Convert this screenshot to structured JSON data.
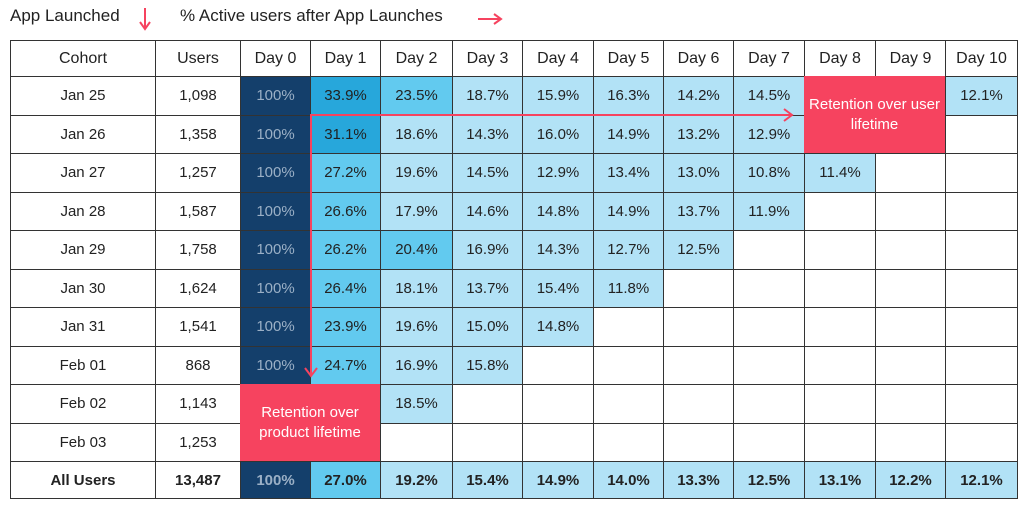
{
  "labels": {
    "app_launched": "App Launched",
    "active_users": "% Active users after App Launches",
    "user_lifetime": "Retention over user lifetime",
    "product_lifetime": "Retention over product lifetime"
  },
  "colors": {
    "day0": "#143f6b",
    "high": "#27a7db",
    "mid": "#62caef",
    "low": "#b2e2f6",
    "accent": "#f6435f"
  },
  "chart_data": {
    "type": "table",
    "headers": [
      "Cohort",
      "Users",
      "Day 0",
      "Day 1",
      "Day 2",
      "Day 3",
      "Day 4",
      "Day 5",
      "Day 6",
      "Day 7",
      "Day 8",
      "Day 9",
      "Day 10"
    ],
    "rows": [
      [
        "Jan 25",
        "1,098",
        "100%",
        "33.9%",
        "23.5%",
        "18.7%",
        "15.9%",
        "16.3%",
        "14.2%",
        "14.5%",
        "",
        "",
        "12.1%"
      ],
      [
        "Jan 26",
        "1,358",
        "100%",
        "31.1%",
        "18.6%",
        "14.3%",
        "16.0%",
        "14.9%",
        "13.2%",
        "12.9%",
        "",
        "",
        ""
      ],
      [
        "Jan 27",
        "1,257",
        "100%",
        "27.2%",
        "19.6%",
        "14.5%",
        "12.9%",
        "13.4%",
        "13.0%",
        "10.8%",
        "11.4%",
        "",
        ""
      ],
      [
        "Jan 28",
        "1,587",
        "100%",
        "26.6%",
        "17.9%",
        "14.6%",
        "14.8%",
        "14.9%",
        "13.7%",
        "11.9%",
        "",
        "",
        ""
      ],
      [
        "Jan 29",
        "1,758",
        "100%",
        "26.2%",
        "20.4%",
        "16.9%",
        "14.3%",
        "12.7%",
        "12.5%",
        "",
        "",
        "",
        ""
      ],
      [
        "Jan 30",
        "1,624",
        "100%",
        "26.4%",
        "18.1%",
        "13.7%",
        "15.4%",
        "11.8%",
        "",
        "",
        "",
        "",
        ""
      ],
      [
        "Jan 31",
        "1,541",
        "100%",
        "23.9%",
        "19.6%",
        "15.0%",
        "14.8%",
        "",
        "",
        "",
        "",
        "",
        ""
      ],
      [
        "Feb 01",
        "868",
        "100%",
        "24.7%",
        "16.9%",
        "15.8%",
        "",
        "",
        "",
        "",
        "",
        "",
        ""
      ],
      [
        "Feb 02",
        "1,143",
        "",
        "",
        "18.5%",
        "",
        "",
        "",
        "",
        "",
        "",
        "",
        ""
      ],
      [
        "Feb 03",
        "1,253",
        "",
        "",
        "",
        "",
        "",
        "",
        "",
        "",
        "",
        "",
        ""
      ]
    ],
    "total": [
      "All Users",
      "13,487",
      "100%",
      "27.0%",
      "19.2%",
      "15.4%",
      "14.9%",
      "14.0%",
      "13.3%",
      "12.5%",
      "13.1%",
      "12.2%",
      "12.1%"
    ]
  }
}
